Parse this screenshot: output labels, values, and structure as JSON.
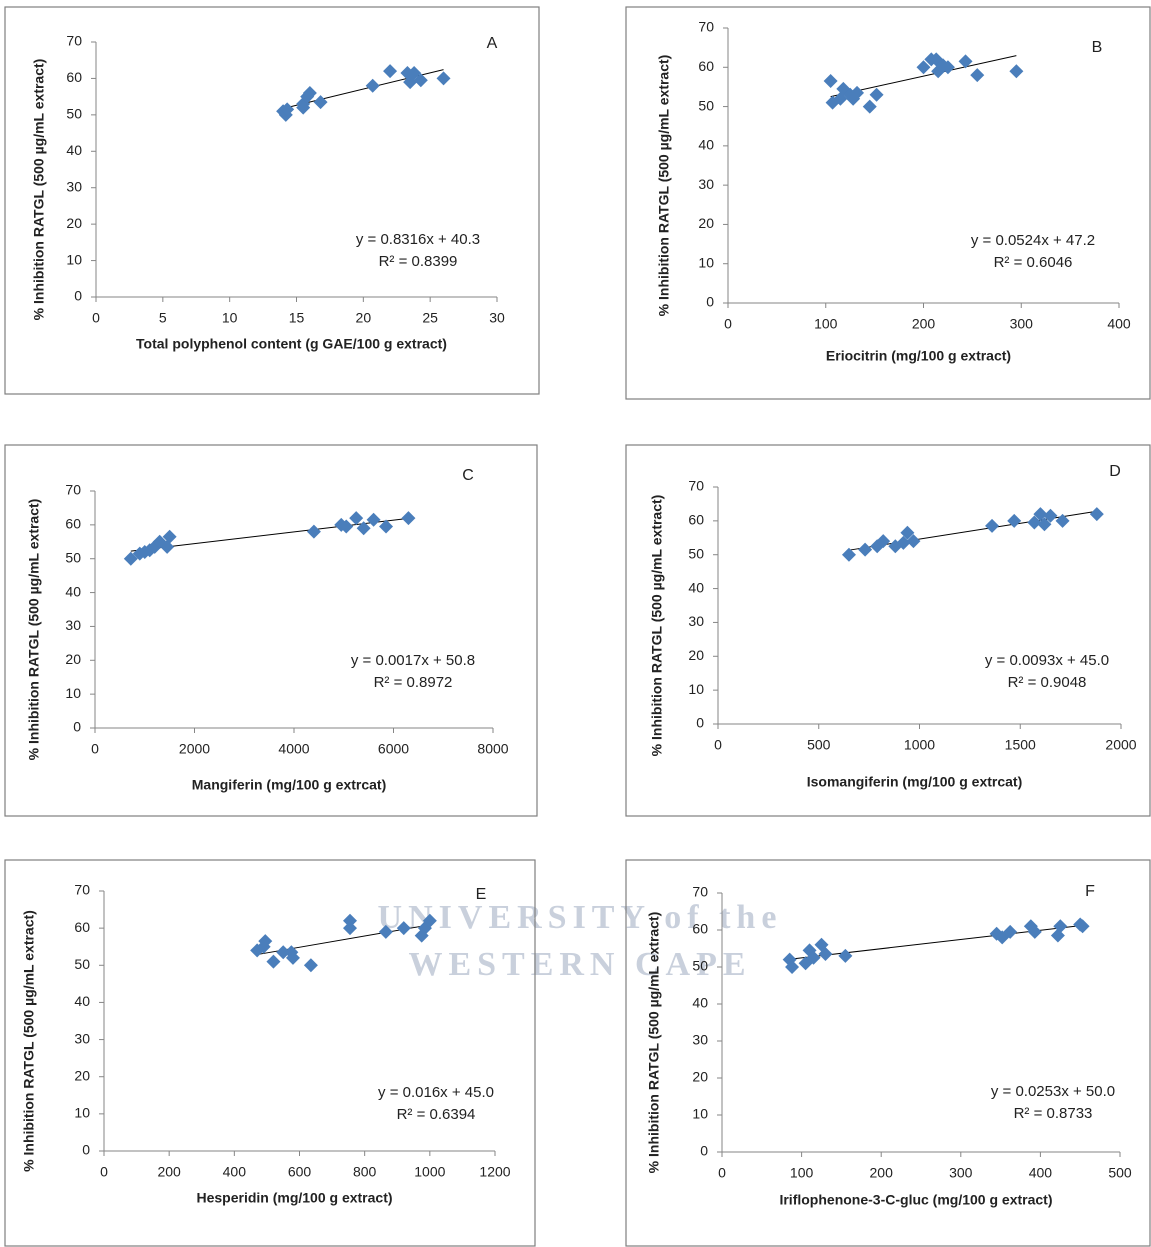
{
  "chart_data": [
    {
      "type": "scatter",
      "label": "A",
      "color": "#4a7ebb",
      "xlabel": "Total polyphenol content (g GAE/100 g extract)",
      "ylabel": "% Inhibition RATGL  (500 µg/mL extract)",
      "equation": "y = 0.8316x + 40.3",
      "r2": "R² = 0.8399",
      "x": [
        14,
        14.2,
        14.3,
        15.5,
        15.8,
        16,
        15.5,
        16.8,
        20.7,
        22,
        23.3,
        23.5,
        23.8,
        24.3,
        26
      ],
      "values": [
        51,
        50,
        51.5,
        53,
        55,
        56,
        52,
        53.5,
        58,
        62,
        61.5,
        59,
        61.5,
        59.5,
        60
      ],
      "xlim": [
        0,
        30
      ],
      "xticks": [
        0,
        5,
        10,
        15,
        20,
        25,
        30
      ],
      "ylim": [
        0,
        70
      ],
      "yticks": [
        0,
        10,
        20,
        30,
        40,
        50,
        60,
        70
      ]
    },
    {
      "type": "scatter",
      "label": "B",
      "color": "#4a7ebb",
      "xlabel": "Eriocitrin (mg/100 g extract)",
      "ylabel": "% Inhibition RATGL  (500 µg/mL extract)",
      "equation": "y = 0.0524x + 47.2",
      "r2": "R² = 0.6046",
      "x": [
        105,
        107,
        115,
        118,
        125,
        128,
        132,
        145,
        152,
        200,
        208,
        213,
        215,
        220,
        225,
        243,
        255,
        295
      ],
      "values": [
        56.5,
        51,
        52,
        54.5,
        53,
        52,
        53.5,
        50,
        53,
        60,
        62,
        62,
        59,
        60.5,
        60,
        61.5,
        58,
        59
      ],
      "xlim": [
        0,
        400
      ],
      "xticks": [
        0,
        100,
        200,
        300,
        400
      ],
      "ylim": [
        0,
        70
      ],
      "yticks": [
        0,
        10,
        20,
        30,
        40,
        50,
        60,
        70
      ]
    },
    {
      "type": "scatter",
      "label": "C",
      "color": "#4a7ebb",
      "xlabel": "Mangiferin (mg/100 g extrcat)",
      "ylabel": "% Inhibition RATGL  (500 µg/mL extract)",
      "equation": "y = 0.0017x + 50.8",
      "r2": "R² = 0.8972",
      "x": [
        720,
        900,
        1000,
        1100,
        1200,
        1300,
        1450,
        1500,
        4400,
        4950,
        5050,
        5250,
        5400,
        5600,
        5850,
        6300
      ],
      "values": [
        50,
        51.5,
        52,
        52.5,
        53.5,
        55,
        53.5,
        56.5,
        58,
        60,
        59.5,
        62,
        59,
        61.5,
        59.5,
        62
      ],
      "xlim": [
        0,
        8000
      ],
      "xticks": [
        0,
        2000,
        4000,
        6000,
        8000
      ],
      "ylim": [
        0,
        70
      ],
      "yticks": [
        0,
        10,
        20,
        30,
        40,
        50,
        60,
        70
      ]
    },
    {
      "type": "scatter",
      "label": "D",
      "color": "#4a7ebb",
      "xlabel": "Isomangiferin (mg/100 g extrcat)",
      "ylabel": "% Inhibition RATGL  (500 µg/mL extract)",
      "equation": "y = 0.0093x + 45.0",
      "r2": "R² = 0.9048",
      "x": [
        650,
        730,
        790,
        820,
        880,
        920,
        940,
        970,
        1360,
        1470,
        1570,
        1600,
        1620,
        1650,
        1710,
        1880
      ],
      "values": [
        50,
        51.5,
        52.5,
        54,
        52.5,
        53.5,
        56.5,
        54,
        58.5,
        60,
        59.5,
        62,
        59,
        61.5,
        60,
        62
      ],
      "xlim": [
        0,
        2000
      ],
      "xticks": [
        0,
        500,
        1000,
        1500,
        2000
      ],
      "ylim": [
        0,
        70
      ],
      "yticks": [
        0,
        10,
        20,
        30,
        40,
        50,
        60,
        70
      ]
    },
    {
      "type": "scatter",
      "label": "E",
      "color": "#4a7ebb",
      "xlabel": "Hesperidin (mg/100 g extract)",
      "ylabel": "% Inhibition RATGL (500 µg/mL extract)",
      "equation": "y = 0.016x + 45.0",
      "r2": "R² = 0.6394",
      "x": [
        470,
        490,
        495,
        520,
        550,
        575,
        580,
        635,
        755,
        755,
        865,
        920,
        975,
        985,
        1000
      ],
      "values": [
        54,
        55,
        56.5,
        51,
        53.5,
        53.5,
        52,
        50,
        62,
        60,
        59,
        60,
        58,
        60,
        62
      ],
      "xlim": [
        0,
        1200
      ],
      "xticks": [
        0,
        200,
        400,
        600,
        800,
        1000,
        1200
      ],
      "ylim": [
        0,
        70
      ],
      "yticks": [
        0,
        10,
        20,
        30,
        40,
        50,
        60,
        70
      ]
    },
    {
      "type": "scatter",
      "label": "F",
      "color": "#4a7ebb",
      "xlabel": "Iriflophenone-3-C-gluc (mg/100 g extract)",
      "ylabel": "% Inhibition RATGL (500 µg/mL extract)",
      "equation": "y = 0.0253x + 50.0",
      "r2": "R² = 0.8733",
      "x": [
        85,
        88,
        105,
        110,
        115,
        125,
        130,
        155,
        345,
        352,
        362,
        388,
        393,
        422,
        425,
        450,
        453
      ],
      "values": [
        52,
        50,
        51,
        54.5,
        52.5,
        56,
        53.5,
        53,
        59,
        58,
        59.5,
        61,
        59.5,
        58.5,
        61,
        61.5,
        61
      ],
      "xlim": [
        0,
        500
      ],
      "xticks": [
        0,
        100,
        200,
        300,
        400,
        500
      ],
      "ylim": [
        0,
        70
      ],
      "yticks": [
        0,
        10,
        20,
        30,
        40,
        50,
        60,
        70
      ]
    }
  ],
  "watermark": [
    "UNIVERSITY of the",
    "WESTERN CAPE"
  ]
}
